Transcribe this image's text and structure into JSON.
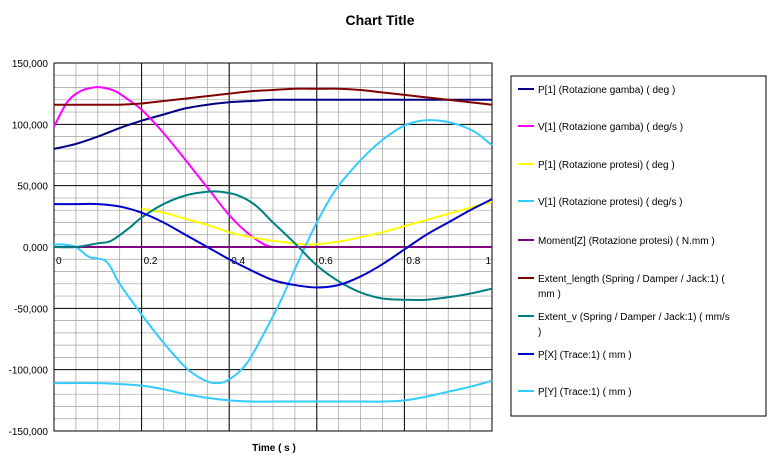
{
  "chart_data": {
    "type": "line",
    "title": "Chart Title",
    "xlabel": "Time ( s )",
    "ylabel": "",
    "xlim": [
      0,
      1
    ],
    "ylim": [
      -150,
      150
    ],
    "xticks": [
      0,
      0.2,
      0.4,
      0.6,
      0.8,
      1
    ],
    "xtick_labels": [
      "0",
      "0.2",
      "0.4",
      "0.6",
      "0.8",
      "1"
    ],
    "yticks": [
      -150,
      -100,
      -50,
      0,
      50,
      100,
      150
    ],
    "ytick_labels": [
      "-150,000",
      "-100,000",
      "-50,000",
      "0,000",
      "50,000",
      "100,000",
      "150,000"
    ],
    "x_minor_step": 0.05,
    "y_minor_step": 10,
    "grid": true,
    "legend_position": "right",
    "series": [
      {
        "name": "P[1] (Rotazione gamba) ( deg )",
        "color": "#000080",
        "x": [
          0,
          0.05,
          0.1,
          0.15,
          0.2,
          0.25,
          0.3,
          0.35,
          0.4,
          0.45,
          0.5,
          0.55,
          0.6,
          0.7,
          0.8,
          0.9,
          1.0
        ],
        "y": [
          80,
          84,
          90,
          97,
          103,
          108,
          113,
          116,
          118,
          119,
          120,
          120,
          120,
          120,
          120,
          120,
          120
        ]
      },
      {
        "name": "V[1] (Rotazione gamba) ( deg/s )",
        "color": "#FF00FF",
        "x": [
          0,
          0.03,
          0.06,
          0.09,
          0.11,
          0.14,
          0.17,
          0.2,
          0.24,
          0.28,
          0.32,
          0.36,
          0.4,
          0.44,
          0.48,
          0.5
        ],
        "y": [
          98,
          118,
          127,
          130,
          130,
          127,
          120,
          112,
          97,
          80,
          62,
          44,
          26,
          12,
          2,
          0
        ]
      },
      {
        "name": "P[1] (Rotazione protesi) ( deg )",
        "color": "#FFFF00",
        "x": [
          0.2,
          0.25,
          0.3,
          0.35,
          0.4,
          0.45,
          0.5,
          0.55,
          0.58,
          0.62,
          0.66,
          0.7,
          0.75,
          0.8,
          0.85,
          0.9,
          0.95,
          1.0
        ],
        "y": [
          31,
          28,
          23,
          18,
          12,
          8,
          5,
          3,
          2,
          3,
          5,
          8,
          12,
          17,
          22,
          27,
          32,
          37
        ]
      },
      {
        "name": "V[1] (Rotazione protesi) ( deg/s )",
        "color": "#33CCFF",
        "x": [
          0,
          0.02,
          0.05,
          0.08,
          0.12,
          0.15,
          0.2,
          0.25,
          0.3,
          0.34,
          0.37,
          0.4,
          0.44,
          0.48,
          0.52,
          0.56,
          0.6,
          0.64,
          0.68,
          0.72,
          0.76,
          0.8,
          0.84,
          0.88,
          0.92,
          0.96,
          1.0
        ],
        "y": [
          2,
          2,
          0,
          -8,
          -12,
          -30,
          -55,
          -78,
          -98,
          -108,
          -111,
          -108,
          -95,
          -70,
          -42,
          -10,
          20,
          45,
          63,
          78,
          90,
          99,
          103,
          103,
          100,
          94,
          83
        ]
      },
      {
        "name": "Moment[Z] (Rotazione protesi) ( N.mm )",
        "color": "#800080",
        "x": [
          0,
          0.25,
          0.5,
          0.75,
          1.0
        ],
        "y": [
          0,
          0,
          0,
          0,
          0
        ]
      },
      {
        "name": "Extent_length (Spring / Damper / Jack:1) ( mm )",
        "color": "#800000",
        "x": [
          0,
          0.05,
          0.1,
          0.15,
          0.2,
          0.25,
          0.3,
          0.35,
          0.4,
          0.45,
          0.5,
          0.55,
          0.6,
          0.65,
          0.7,
          0.75,
          0.8,
          0.85,
          0.9,
          0.95,
          1.0
        ],
        "y": [
          116,
          116,
          116,
          116,
          117,
          119,
          121,
          123,
          125,
          127,
          128,
          129,
          129,
          129,
          128,
          126,
          124,
          122,
          120,
          118,
          116
        ]
      },
      {
        "name": "Extent_v (Spring / Damper / Jack:1) ( mm/s )",
        "color": "#008080",
        "x": [
          0,
          0.05,
          0.1,
          0.13,
          0.17,
          0.2,
          0.25,
          0.3,
          0.35,
          0.38,
          0.42,
          0.46,
          0.5,
          0.55,
          0.6,
          0.65,
          0.7,
          0.75,
          0.8,
          0.85,
          0.9,
          0.95,
          1.0
        ],
        "y": [
          0,
          0,
          3,
          5,
          15,
          24,
          35,
          42,
          45,
          45,
          42,
          34,
          20,
          3,
          -15,
          -28,
          -37,
          -42,
          -43,
          -43,
          -41,
          -38,
          -34
        ]
      },
      {
        "name": "P[X] (Trace:1) ( mm )",
        "color": "#0000CC",
        "x": [
          0,
          0.05,
          0.1,
          0.15,
          0.2,
          0.25,
          0.3,
          0.35,
          0.4,
          0.45,
          0.5,
          0.55,
          0.6,
          0.65,
          0.7,
          0.75,
          0.8,
          0.85,
          0.9,
          0.95,
          1.0
        ],
        "y": [
          35,
          35,
          35,
          33,
          28,
          20,
          10,
          0,
          -10,
          -19,
          -27,
          -31,
          -33,
          -31,
          -24,
          -14,
          -2,
          10,
          20,
          30,
          39
        ]
      },
      {
        "name": "P[Y] (Trace:1) ( mm )",
        "color": "#33CCFF",
        "x": [
          0,
          0.1,
          0.2,
          0.25,
          0.3,
          0.35,
          0.4,
          0.45,
          0.5,
          0.6,
          0.7,
          0.75,
          0.8,
          0.85,
          0.9,
          0.95,
          1.0
        ],
        "y": [
          -111,
          -111,
          -113,
          -116,
          -120,
          -123,
          -125,
          -126,
          -126,
          -126,
          -126,
          -126,
          -125,
          -122,
          -118,
          -114,
          -109
        ]
      }
    ]
  }
}
